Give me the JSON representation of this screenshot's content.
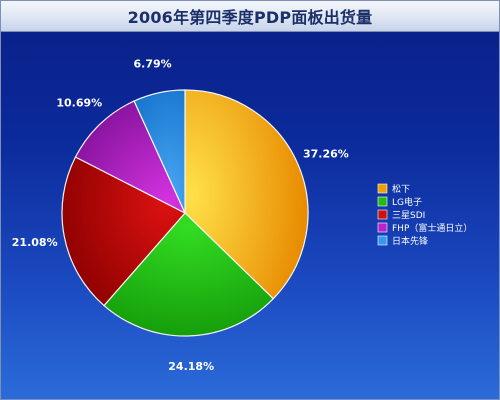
{
  "chart_data": {
    "type": "pie",
    "title": "2006年第四季度PDP面板出货量",
    "categories": [
      "松下",
      "LG电子",
      "三星SDI",
      "FHP（富士通日立）",
      "日本先锋"
    ],
    "values": [
      37.26,
      24.18,
      21.08,
      10.69,
      6.79
    ],
    "value_labels": [
      "37.26%",
      "24.18%",
      "21.08%",
      "10.69%",
      "6.79%"
    ],
    "colors": [
      "#f0a000",
      "#22bb11",
      "#cc1111",
      "#bb22cc",
      "#3399ee"
    ],
    "legend_position": "right",
    "start": "top",
    "direction": "clockwise"
  }
}
